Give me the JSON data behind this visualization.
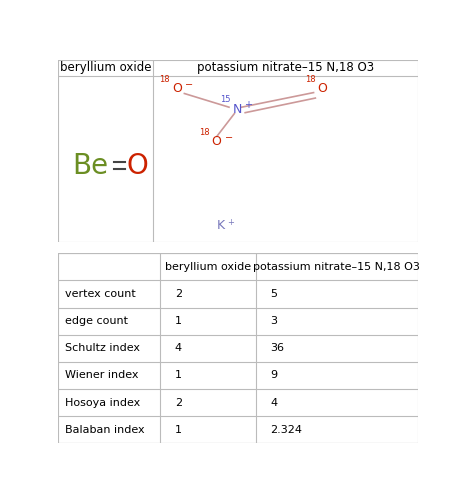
{
  "header_col0": "",
  "header_col1": "beryllium oxide",
  "header_col2": "potassium nitrate–15 N,18 O3",
  "rows": [
    [
      "vertex count",
      "2",
      "5"
    ],
    [
      "edge count",
      "1",
      "3"
    ],
    [
      "Schultz index",
      "4",
      "36"
    ],
    [
      "Wiener index",
      "1",
      "9"
    ],
    [
      "Hosoya index",
      "2",
      "4"
    ],
    [
      "Balaban index",
      "1",
      "2.324"
    ]
  ],
  "mol_header_col1": "beryllium oxide",
  "mol_header_col2": "potassium nitrate–15 N,18 O3",
  "be_color": "#6b8e23",
  "o_color": "#cc2200",
  "n_color": "#5555cc",
  "k_color": "#7777bb",
  "bond_color_no3": "#cc9999",
  "bond_color_beo": "#444444",
  "fig_width": 4.64,
  "fig_height": 4.98,
  "col_div": 0.265,
  "header_font": 8.5,
  "beo_fontsize": 20,
  "mol_fontsize": 9,
  "mol_super_fontsize": 6,
  "table_header_fontsize": 8,
  "table_data_fontsize": 8
}
